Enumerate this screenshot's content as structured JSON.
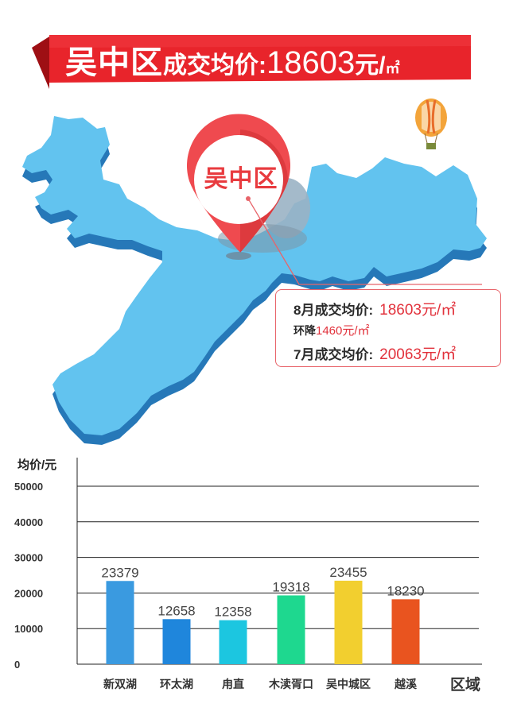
{
  "banner": {
    "district": "吴中区",
    "label": "成交均价:",
    "price": "18603",
    "unit_yuan": "元/",
    "unit_sqm": "㎡"
  },
  "pin": {
    "label": "吴中区"
  },
  "info": {
    "aug_label": "8月成交均价:",
    "aug_value": "18603元/㎡",
    "change_label": "环降",
    "change_value": "1460元/㎡",
    "jul_label": "7月成交均价:",
    "jul_value": "20063元/㎡"
  },
  "colors": {
    "banner_red": "#e8242b",
    "banner_dark": "#9e0f14",
    "map_face": "#62c3ef",
    "map_side": "#2678b8",
    "pin_red": "#ef4a4f",
    "accent_red": "#e2323c"
  },
  "chart_data": {
    "type": "bar",
    "ylabel": "均价/元",
    "xlabel": "区域",
    "ylim": [
      0,
      50000
    ],
    "yticks": [
      0,
      10000,
      20000,
      30000,
      40000,
      50000
    ],
    "categories": [
      "新双湖",
      "环太湖",
      "甪直",
      "木渎胥口",
      "吴中城区",
      "越溪"
    ],
    "values": [
      23379,
      12658,
      12358,
      19318,
      23455,
      18230
    ],
    "bar_colors": [
      "#3a9ae0",
      "#1f86dc",
      "#1cc6e0",
      "#1ed88f",
      "#f2cf2f",
      "#e9541f"
    ],
    "grid": true,
    "legend": "none"
  }
}
